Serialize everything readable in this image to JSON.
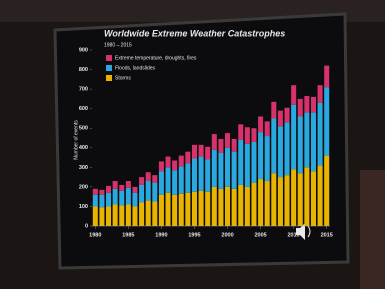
{
  "chart_data": {
    "type": "bar",
    "stacked": true,
    "title": "Worldwide Extreme Weather Catastrophes",
    "subtitle": "1980 – 2015",
    "y_label": "Number of events",
    "x": [
      1980,
      1981,
      1982,
      1983,
      1984,
      1985,
      1986,
      1987,
      1988,
      1989,
      1990,
      1991,
      1992,
      1993,
      1994,
      1995,
      1996,
      1997,
      1998,
      1999,
      2000,
      2001,
      2002,
      2003,
      2004,
      2005,
      2006,
      2007,
      2008,
      2009,
      2010,
      2011,
      2012,
      2013,
      2014,
      2015
    ],
    "xlim": [
      1979.5,
      2015.5
    ],
    "xticks": [
      1980,
      1985,
      1990,
      1995,
      2000,
      2005,
      2010,
      2015
    ],
    "ylim": [
      0,
      900
    ],
    "yticks": [
      0,
      100,
      200,
      300,
      400,
      500,
      600,
      700,
      800,
      900
    ],
    "series": [
      {
        "name": "Storms",
        "color": "#e8b400",
        "values": [
          100,
          95,
          100,
          110,
          105,
          110,
          100,
          120,
          130,
          125,
          160,
          170,
          160,
          165,
          170,
          175,
          180,
          175,
          200,
          190,
          200,
          190,
          210,
          200,
          220,
          240,
          230,
          270,
          250,
          260,
          290,
          270,
          300,
          280,
          310,
          360
        ]
      },
      {
        "name": "Floods, landslides",
        "color": "#2aa8e0",
        "values": [
          60,
          65,
          70,
          80,
          75,
          85,
          70,
          90,
          100,
          95,
          120,
          130,
          125,
          140,
          150,
          170,
          175,
          165,
          190,
          185,
          200,
          190,
          230,
          220,
          210,
          240,
          230,
          280,
          260,
          270,
          330,
          290,
          280,
          300,
          320,
          350
        ]
      },
      {
        "name": "Extreme temperature, droughts, fires",
        "color": "#d6336c",
        "values": [
          30,
          25,
          35,
          40,
          30,
          35,
          30,
          40,
          45,
          40,
          50,
          55,
          50,
          55,
          60,
          70,
          60,
          65,
          80,
          70,
          75,
          65,
          80,
          85,
          70,
          80,
          75,
          85,
          80,
          75,
          100,
          90,
          85,
          80,
          90,
          110
        ]
      }
    ]
  }
}
